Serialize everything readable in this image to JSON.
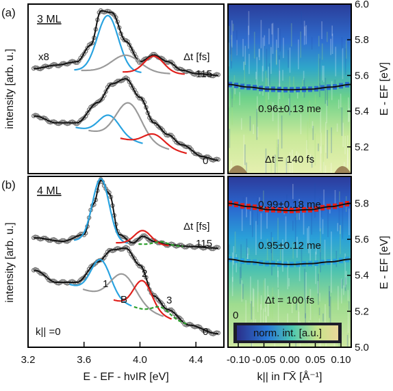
{
  "figure": {
    "panel_a_label": "(a)",
    "panel_b_label": "(b)",
    "left_ylabel": "intensity [arb. u.]",
    "left_xlabel": "E - EF - hνIR [eV]",
    "right_ylabel": "E - EF [eV]",
    "right_xlabel": "k|| in Γ̄X̄ [Å⁻¹]"
  },
  "chart_data": [
    {
      "type": "line",
      "id": "a-left",
      "title": "3 ML",
      "xlabel": "E - EF - hνIR [eV]",
      "ylabel": "intensity [arb. u.]",
      "xlim": [
        3.2,
        4.6
      ],
      "annotations": [
        "x8",
        "Δt [fs]",
        "115",
        "0"
      ],
      "series": [
        {
          "delay_fs": 115,
          "component": "data",
          "x": [
            3.25,
            3.4,
            3.55,
            3.65,
            3.72,
            3.8,
            3.9,
            4.0,
            4.1,
            4.2,
            4.3,
            4.4,
            4.55
          ],
          "y": [
            0.62,
            0.64,
            0.66,
            0.76,
            0.96,
            0.95,
            0.78,
            0.66,
            0.7,
            0.66,
            0.61,
            0.59,
            0.58
          ]
        },
        {
          "delay_fs": 115,
          "component": "peak-blue",
          "center": 3.77,
          "width": 0.075,
          "amplitude": 0.33
        },
        {
          "delay_fs": 115,
          "component": "peak-gray",
          "center": 3.9,
          "width": 0.1,
          "amplitude": 0.1
        },
        {
          "delay_fs": 115,
          "component": "peak-red",
          "center": 4.1,
          "width": 0.07,
          "amplitude": 0.1
        },
        {
          "delay_fs": 0,
          "component": "data",
          "x": [
            3.25,
            3.4,
            3.55,
            3.7,
            3.8,
            3.9,
            4.0,
            4.1,
            4.2,
            4.3,
            4.45,
            4.55
          ],
          "y": [
            0.34,
            0.3,
            0.3,
            0.42,
            0.53,
            0.56,
            0.45,
            0.3,
            0.23,
            0.17,
            0.1,
            0.08
          ]
        },
        {
          "delay_fs": 0,
          "component": "peak-blue",
          "center": 3.78,
          "width": 0.075,
          "amplitude": 0.12
        },
        {
          "delay_fs": 0,
          "component": "peak-gray",
          "center": 3.92,
          "width": 0.09,
          "amplitude": 0.22
        },
        {
          "delay_fs": 0,
          "component": "peak-red",
          "center": 4.1,
          "width": 0.075,
          "amplitude": 0.07
        }
      ]
    },
    {
      "type": "heatmap",
      "id": "a-right",
      "xlabel": "k|| in Γ̄X̄ [Å⁻¹]",
      "ylabel": "E - EF [eV]",
      "xlim": [
        -0.12,
        0.12
      ],
      "ylim": [
        5.05,
        6.0
      ],
      "yticks": [
        5.2,
        5.4,
        5.6,
        5.8,
        6.0
      ],
      "annotations": [
        "0.96±0.13 me",
        "Δt = 140 fs"
      ],
      "dispersion": [
        {
          "effective_mass": "0.96±0.13 me",
          "E0": 5.52,
          "k": [
            -0.12,
            -0.08,
            -0.04,
            0.0,
            0.04,
            0.08,
            0.12
          ],
          "E": [
            5.55,
            5.535,
            5.523,
            5.52,
            5.523,
            5.535,
            5.55
          ]
        }
      ]
    },
    {
      "type": "line",
      "id": "b-left",
      "title": "4 ML",
      "xlabel": "E - EF - hνIR [eV]",
      "ylabel": "intensity [arb. u.]",
      "xlim": [
        3.2,
        4.6
      ],
      "xticks": [
        3.2,
        3.6,
        4.0,
        4.4
      ],
      "annotations": [
        "Δt [fs]",
        "115",
        "0",
        "k|| =0",
        "1",
        "B",
        "2",
        "3"
      ],
      "series": [
        {
          "delay_fs": 115,
          "component": "data",
          "x": [
            3.25,
            3.45,
            3.6,
            3.67,
            3.72,
            3.78,
            3.85,
            3.95,
            4.02,
            4.1,
            4.2,
            4.35,
            4.55
          ],
          "y": [
            0.64,
            0.62,
            0.66,
            0.84,
            0.98,
            0.9,
            0.66,
            0.61,
            0.65,
            0.62,
            0.6,
            0.59,
            0.58
          ]
        },
        {
          "delay_fs": 115,
          "component": "peak-blue",
          "center": 3.72,
          "width": 0.06,
          "amplitude": 0.37
        },
        {
          "delay_fs": 115,
          "component": "peak-red",
          "center": 4.02,
          "width": 0.06,
          "amplitude": 0.08
        },
        {
          "delay_fs": 115,
          "component": "peak-green",
          "center": 4.15,
          "width": 0.05,
          "amplitude": 0.02
        },
        {
          "delay_fs": 0,
          "component": "data",
          "x": [
            3.25,
            3.4,
            3.55,
            3.7,
            3.8,
            3.9,
            4.0,
            4.1,
            4.2,
            4.35,
            4.55
          ],
          "y": [
            0.45,
            0.38,
            0.38,
            0.5,
            0.57,
            0.58,
            0.48,
            0.3,
            0.22,
            0.13,
            0.08
          ]
        },
        {
          "delay_fs": 0,
          "component": "peak-blue",
          "center": 3.72,
          "width": 0.07,
          "amplitude": 0.21
        },
        {
          "delay_fs": 0,
          "component": "peak-gray",
          "center": 3.88,
          "width": 0.09,
          "amplitude": 0.17
        },
        {
          "delay_fs": 0,
          "component": "peak-red",
          "center": 4.02,
          "width": 0.065,
          "amplitude": 0.17
        },
        {
          "delay_fs": 0,
          "component": "peak-green",
          "center": 4.15,
          "width": 0.06,
          "amplitude": 0.05
        }
      ]
    },
    {
      "type": "heatmap",
      "id": "b-right",
      "xlabel": "k|| in Γ̄X̄ [Å⁻¹]",
      "ylabel": "E - EF [eV]",
      "xlim": [
        -0.12,
        0.12
      ],
      "ylim": [
        5.0,
        5.95
      ],
      "xticks": [
        -0.1,
        -0.05,
        0.0,
        0.05,
        0.1
      ],
      "xticklabels": [
        "-0.10",
        "-0.05",
        "0.00",
        "0.05",
        "0.10"
      ],
      "yticks": [
        5.0,
        5.2,
        5.4,
        5.6,
        5.8
      ],
      "annotations": [
        "0.99±0.18 me",
        "0.95±0.12 me",
        "Δt = 100 fs",
        "0",
        "norm. int. [a.u.]"
      ],
      "dispersion": [
        {
          "effective_mass": "0.99±0.18 me",
          "E0": 5.76,
          "k": [
            -0.12,
            -0.08,
            -0.04,
            0.0,
            0.04,
            0.08,
            0.12
          ],
          "E": [
            5.8,
            5.782,
            5.765,
            5.76,
            5.765,
            5.782,
            5.8
          ]
        },
        {
          "effective_mass": "0.95±0.12 me",
          "E0": 5.46,
          "k": [
            -0.12,
            -0.08,
            -0.04,
            0.0,
            0.04,
            0.08,
            0.12
          ],
          "E": [
            5.49,
            5.475,
            5.465,
            5.46,
            5.465,
            5.475,
            5.49
          ]
        }
      ]
    }
  ],
  "ticks": {
    "left_x": [
      "3.2",
      "3.6",
      "4.0",
      "4.4"
    ],
    "right_a_y": [
      "5.2",
      "5.4",
      "5.6",
      "5.8",
      "6.0"
    ],
    "right_b_y": [
      "5.0",
      "5.2",
      "5.4",
      "5.6",
      "5.8"
    ],
    "right_x": [
      "-0.10",
      "-0.05",
      "0.00",
      "0.05",
      "0.10"
    ]
  },
  "colors": {
    "data": "#7a7a7a",
    "fit": "#111111",
    "peak_blue": "#29a3e0",
    "peak_gray": "#9a9a9a",
    "peak_red": "#e0201c",
    "peak_green": "#2ca02c",
    "background_line": "#111111",
    "dispersion_a": "#111111",
    "markers_b_upper": "#e0201c",
    "markers_b_lower": "#29a3e0"
  }
}
